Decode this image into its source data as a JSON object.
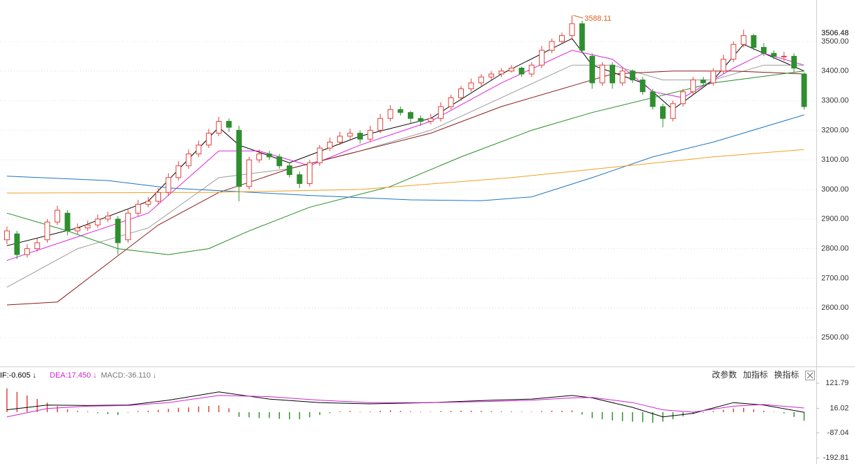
{
  "chart_data": [
    {
      "type": "candlestick",
      "ylim": [
        2402,
        3640
      ],
      "yticks": [
        {
          "value": 2500,
          "label": "2500.00"
        },
        {
          "value": 2600,
          "label": "2600.00"
        },
        {
          "value": 2700,
          "label": "2700.00"
        },
        {
          "value": 2800,
          "label": "2800.00"
        },
        {
          "value": 2900,
          "label": "2900.00"
        },
        {
          "value": 3000,
          "label": "3000.00"
        },
        {
          "value": 3100,
          "label": "3100.00"
        },
        {
          "value": 3200,
          "label": "3200.00"
        },
        {
          "value": 3300,
          "label": "3300.00"
        },
        {
          "value": 3400,
          "label": "3400.00"
        },
        {
          "value": 3500,
          "label": "3500.00"
        }
      ],
      "grid": true,
      "last_price": 3506.48,
      "high_annotation": 3588.11,
      "up_color": "#e0403a",
      "down_color": "#2f8f2f",
      "annotation_color": "#e06020",
      "open": [
        2830,
        2850,
        2780,
        2800,
        2830,
        2890,
        2920,
        2860,
        2870,
        2880,
        2900,
        2900,
        2830,
        2920,
        2950,
        2960,
        2990,
        3040,
        3080,
        3120,
        3150,
        3190,
        3230,
        3200,
        3010,
        3100,
        3120,
        3110,
        3080,
        3050,
        3020,
        3090,
        3140,
        3160,
        3180,
        3190,
        3170,
        3200,
        3240,
        3270,
        3260,
        3240,
        3230,
        3240,
        3280,
        3310,
        3340,
        3360,
        3380,
        3390,
        3400,
        3410,
        3390,
        3420,
        3470,
        3500,
        3520,
        3560,
        3450,
        3360,
        3420,
        3360,
        3400,
        3370,
        3330,
        3280,
        3240,
        3290,
        3330,
        3370,
        3360,
        3400,
        3440,
        3490,
        3520,
        3480,
        3460,
        3450,
        3450,
        3390
      ],
      "high": [
        2875,
        2860,
        2815,
        2835,
        2900,
        2945,
        2930,
        2885,
        2895,
        2915,
        2925,
        2910,
        2935,
        2965,
        2975,
        3005,
        3055,
        3095,
        3135,
        3165,
        3205,
        3245,
        3240,
        3215,
        3110,
        3135,
        3130,
        3120,
        3090,
        3060,
        3100,
        3150,
        3175,
        3195,
        3205,
        3200,
        3215,
        3255,
        3285,
        3280,
        3265,
        3250,
        3255,
        3295,
        3320,
        3350,
        3375,
        3390,
        3400,
        3410,
        3420,
        3415,
        3430,
        3485,
        3510,
        3530,
        3588.11,
        3570,
        3460,
        3430,
        3430,
        3410,
        3405,
        3380,
        3340,
        3290,
        3300,
        3340,
        3380,
        3380,
        3410,
        3455,
        3500,
        3540,
        3525,
        3495,
        3470,
        3465,
        3460,
        3395
      ],
      "low": [
        2815,
        2765,
        2770,
        2790,
        2820,
        2880,
        2845,
        2850,
        2860,
        2870,
        2890,
        2780,
        2820,
        2910,
        2940,
        2950,
        2980,
        3030,
        3070,
        3110,
        3140,
        3180,
        3195,
        2960,
        3000,
        3090,
        3100,
        3070,
        3040,
        3005,
        3010,
        3080,
        3130,
        3150,
        3170,
        3155,
        3160,
        3190,
        3230,
        3250,
        3225,
        3215,
        3220,
        3230,
        3270,
        3300,
        3330,
        3350,
        3370,
        3380,
        3395,
        3380,
        3380,
        3410,
        3460,
        3490,
        3505,
        3460,
        3340,
        3350,
        3340,
        3350,
        3360,
        3320,
        3270,
        3210,
        3230,
        3280,
        3320,
        3350,
        3350,
        3390,
        3430,
        3480,
        3470,
        3450,
        3440,
        3435,
        3395,
        3270
      ],
      "close": [
        2860,
        2780,
        2800,
        2820,
        2890,
        2930,
        2860,
        2870,
        2880,
        2900,
        2910,
        2820,
        2920,
        2950,
        2960,
        2990,
        3040,
        3080,
        3120,
        3150,
        3190,
        3230,
        3210,
        3010,
        3100,
        3120,
        3110,
        3080,
        3050,
        3020,
        3090,
        3140,
        3160,
        3180,
        3190,
        3170,
        3200,
        3240,
        3270,
        3260,
        3240,
        3230,
        3240,
        3280,
        3310,
        3340,
        3360,
        3380,
        3390,
        3400,
        3410,
        3390,
        3420,
        3470,
        3500,
        3520,
        3560,
        3470,
        3360,
        3420,
        3360,
        3400,
        3370,
        3330,
        3280,
        3240,
        3290,
        3330,
        3370,
        3360,
        3400,
        3440,
        3490,
        3520,
        3480,
        3460,
        3450,
        3450,
        3410,
        3280
      ],
      "series": [
        {
          "color": "#000000",
          "x": [
            0,
            7,
            14,
            21,
            23,
            28,
            35,
            42,
            49,
            56,
            58,
            63,
            66,
            70,
            73,
            79
          ],
          "values": [
            2810,
            2870,
            2960,
            3210,
            3150,
            3090,
            3180,
            3240,
            3390,
            3510,
            3420,
            3360,
            3270,
            3370,
            3490,
            3400
          ]
        },
        {
          "color": "#e020e0",
          "x": [
            0,
            7,
            14,
            21,
            25,
            30,
            35,
            42,
            49,
            56,
            60,
            64,
            67,
            72,
            75,
            79
          ],
          "values": [
            2760,
            2840,
            2920,
            3130,
            3130,
            3080,
            3150,
            3230,
            3360,
            3470,
            3440,
            3330,
            3310,
            3410,
            3460,
            3420
          ]
        },
        {
          "color": "#9a9a9a",
          "x": [
            0,
            7,
            14,
            21,
            28,
            35,
            42,
            49,
            56,
            60,
            65,
            70,
            75,
            79
          ],
          "values": [
            2670,
            2800,
            2870,
            3040,
            3070,
            3130,
            3200,
            3310,
            3420,
            3420,
            3370,
            3370,
            3420,
            3420
          ]
        },
        {
          "color": "#8b1a1a",
          "x": [
            0,
            5,
            10,
            15,
            21,
            28,
            35,
            42,
            49,
            56,
            60,
            66,
            72,
            79
          ],
          "values": [
            2610,
            2620,
            2750,
            2880,
            2990,
            3070,
            3130,
            3190,
            3280,
            3350,
            3390,
            3400,
            3400,
            3390
          ]
        },
        {
          "color": "#228b22",
          "x": [
            0,
            6,
            11,
            16,
            20,
            24,
            30,
            38,
            45,
            52,
            58,
            64,
            70,
            79
          ],
          "values": [
            2920,
            2860,
            2800,
            2780,
            2800,
            2860,
            2940,
            3010,
            3110,
            3200,
            3260,
            3310,
            3360,
            3400
          ]
        },
        {
          "color": "#1e73be",
          "x": [
            0,
            10,
            16,
            30,
            40,
            47,
            52,
            58,
            64,
            70,
            79
          ],
          "values": [
            3045,
            3030,
            3005,
            2980,
            2965,
            2962,
            2975,
            3040,
            3110,
            3160,
            3252
          ]
        },
        {
          "color": "#f0a020",
          "x": [
            0,
            20,
            35,
            50,
            60,
            70,
            79
          ],
          "values": [
            2988,
            2990,
            3000,
            3040,
            3075,
            3110,
            3135
          ]
        }
      ]
    },
    {
      "type": "macd",
      "labels": [
        {
          "text": "IF:-0.605 ↓",
          "color": "#000000"
        },
        {
          "text": "DEA:17.450 ↓",
          "color": "#d020d0"
        },
        {
          "text": "MACD:-36.110 ↓",
          "color": "#777777"
        }
      ],
      "buttons": [
        "改参数",
        "加指标",
        "换指标"
      ],
      "ylim": [
        -218,
        186
      ],
      "yticks": [
        121.79,
        16.02,
        -87.04,
        -192.81
      ],
      "up_color": "#e0403a",
      "down_color": "#2f8f2f",
      "histogram": [
        100,
        85,
        70,
        55,
        40,
        25,
        12,
        5,
        3,
        -4,
        -8,
        -12,
        -2,
        4,
        6,
        10,
        14,
        18,
        20,
        24,
        26,
        28,
        16,
        -20,
        -22,
        -25,
        -25,
        -28,
        -30,
        -30,
        -22,
        -12,
        -4,
        3,
        5,
        2,
        3,
        6,
        8,
        5,
        3,
        2,
        2,
        4,
        5,
        6,
        6,
        5,
        4,
        3,
        3,
        2,
        2,
        4,
        6,
        6,
        8,
        -10,
        -25,
        -30,
        -35,
        -38,
        -40,
        -42,
        -45,
        -40,
        -30,
        -18,
        -8,
        -3,
        4,
        10,
        15,
        18,
        12,
        6,
        2,
        -5,
        -20,
        -36.11
      ],
      "series": [
        {
          "color": "#000000",
          "x": [
            0,
            4,
            8,
            12,
            16,
            21,
            26,
            31,
            36,
            42,
            48,
            52,
            56,
            58,
            62,
            65,
            68,
            72,
            75,
            79
          ],
          "values": [
            10,
            30,
            28,
            30,
            50,
            85,
            55,
            40,
            35,
            40,
            50,
            55,
            70,
            60,
            20,
            -20,
            -5,
            40,
            30,
            -0.605
          ]
        },
        {
          "color": "#d020d0",
          "x": [
            0,
            4,
            8,
            12,
            16,
            21,
            26,
            31,
            36,
            42,
            48,
            52,
            56,
            58,
            62,
            65,
            68,
            72,
            75,
            79
          ],
          "values": [
            -20,
            15,
            25,
            28,
            40,
            70,
            65,
            50,
            40,
            40,
            45,
            50,
            60,
            62,
            40,
            10,
            0,
            25,
            32,
            17.45
          ]
        }
      ]
    }
  ]
}
